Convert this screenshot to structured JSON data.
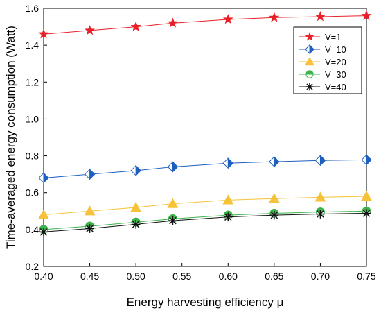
{
  "chart_data": {
    "type": "line",
    "title": "",
    "xlabel": "Energy harvesting efficiency μ",
    "ylabel": "Time-averaged energy consumption (Watt)",
    "xlim": [
      0.4,
      0.75
    ],
    "ylim": [
      0.2,
      1.6
    ],
    "x_ticks": [
      "0.40",
      "0.45",
      "0.50",
      "0.55",
      "0.60",
      "0.65",
      "0.70",
      "0.75"
    ],
    "y_ticks": [
      "0.2",
      "0.4",
      "0.6",
      "0.8",
      "1.0",
      "1.2",
      "1.4",
      "1.6"
    ],
    "grid": false,
    "legend_position": "top-right",
    "x": [
      0.4,
      0.45,
      0.5,
      0.54,
      0.6,
      0.65,
      0.7,
      0.75
    ],
    "series": [
      {
        "name": "V=1",
        "color": "#e8202a",
        "marker": "star",
        "values": [
          1.46,
          1.48,
          1.5,
          1.52,
          1.54,
          1.55,
          1.555,
          1.56
        ]
      },
      {
        "name": "V=10",
        "color": "#1f5fbf",
        "marker": "half-diamond",
        "values": [
          0.68,
          0.7,
          0.72,
          0.74,
          0.76,
          0.768,
          0.775,
          0.778
        ]
      },
      {
        "name": "V=20",
        "color": "#f5c23a",
        "marker": "triangle",
        "values": [
          0.48,
          0.5,
          0.52,
          0.54,
          0.56,
          0.568,
          0.575,
          0.58
        ]
      },
      {
        "name": "V=30",
        "color": "#3cb44b",
        "marker": "half-circle",
        "values": [
          0.4,
          0.418,
          0.44,
          0.458,
          0.478,
          0.488,
          0.495,
          0.5
        ]
      },
      {
        "name": "V=40",
        "color": "#111111",
        "marker": "asterisk",
        "values": [
          0.387,
          0.405,
          0.428,
          0.448,
          0.468,
          0.478,
          0.484,
          0.488
        ]
      }
    ]
  }
}
